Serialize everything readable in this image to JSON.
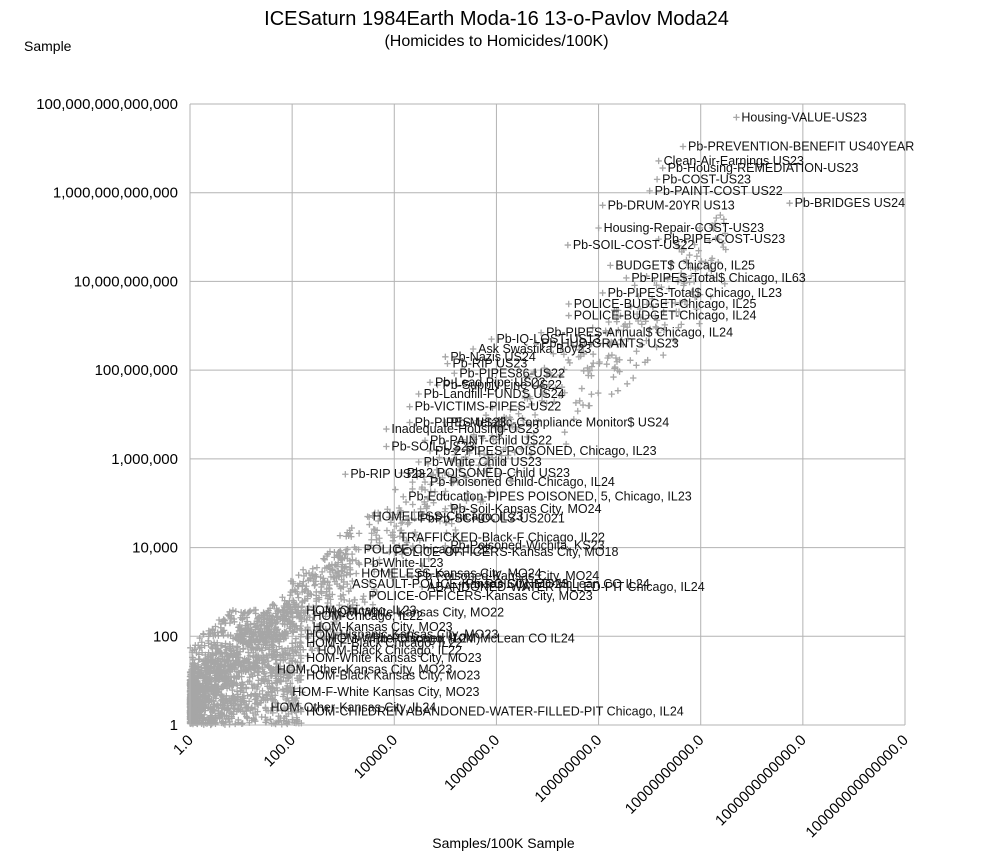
{
  "chart_data": {
    "type": "scatter",
    "title": "ICESaturn 1984Earth Moda-16 13-o-Pavlov Moda24",
    "subtitle": "(Homicides to Homicides/100K)",
    "xlabel": "Samples/100K Sample",
    "ylabel": "Sample",
    "x_scale": "log",
    "y_scale": "log",
    "xlim": [
      1,
      100000000000000
    ],
    "ylim": [
      1,
      100000000000000
    ],
    "grid": "vertical and horizontal gridlines at each decade tick",
    "marker": "plus",
    "marker_color": "#a6a6a6",
    "x_ticks": [
      1,
      100,
      10000,
      1000000,
      100000000,
      10000000000,
      1000000000000,
      100000000000000
    ],
    "x_tick_labels": [
      "1.0",
      "100.0",
      "10000.0",
      "1000000.0",
      "100000000.0",
      "10000000000.0",
      "1000000000000.0",
      "100000000000000.0"
    ],
    "y_ticks": [
      1,
      100,
      10000,
      1000000,
      100000000,
      10000000000,
      1000000000000,
      100000000000000
    ],
    "y_tick_labels": [
      "1",
      "100",
      "10,000",
      "1,000,000",
      "100,000,000",
      "10,000,000,000",
      "1,000,000,000,000",
      "100,000,000,000,000"
    ],
    "labeled_points": [
      {
        "label": "Housing-VALUE-US23",
        "x": 50000000000.0,
        "y": 50000000000000.0
      },
      {
        "label": "Pb-PREVENTION-BENEFIT US40YEAR",
        "x": 4500000000.0,
        "y": 11000000000000.0
      },
      {
        "label": "Clean-Air-Earnings US23",
        "x": 1500000000.0,
        "y": 5200000000000.0
      },
      {
        "label": "Pb-Housing-REMEDIATION-US23",
        "x": 1800000000.0,
        "y": 3600000000000.0
      },
      {
        "label": "Pb-COST-US23",
        "x": 1400000000.0,
        "y": 2000000000000.0
      },
      {
        "label": "Pb-PAINT-COST US22",
        "x": 1000000000.0,
        "y": 1100000000000.0
      },
      {
        "label": "Pb-BRIDGES US24",
        "x": 550000000000.0,
        "y": 580000000000.0
      },
      {
        "label": "Pb-DRUM-20YR US13",
        "x": 120000000.0,
        "y": 520000000000.0
      },
      {
        "label": "Housing-Repair-COST-US23",
        "x": 100000000.0,
        "y": 160000000000.0
      },
      {
        "label": "Pb-PIPE-COST-US23",
        "x": 1500000000.0,
        "y": 90000000000.0
      },
      {
        "label": "Pb-SOIL-COST-US22",
        "x": 25000000.0,
        "y": 66000000000.0
      },
      {
        "label": "BUDGET$ Chicago, IL25",
        "x": 170000000.0,
        "y": 23000000000.0
      },
      {
        "label": "Pb-PIPES-Total$ Chicago, IL63",
        "x": 350000000.0,
        "y": 12000000000.0
      },
      {
        "label": "Pb-PIPES-Total$ Chicago, IL23",
        "x": 120000000.0,
        "y": 5500000000.0
      },
      {
        "label": "POLICE-BUDGET-Chicago, IL25",
        "x": 26000000.0,
        "y": 3100000000.0
      },
      {
        "label": "POLICE-BUDGET-Chicago, IL24",
        "x": 26000000.0,
        "y": 1700000000.0
      },
      {
        "label": "Pb-PIPES-Annual$ Chicago, IL24",
        "x": 7500000.0,
        "y": 700000000.0
      },
      {
        "label": "Pb-IQ-LOST-US13",
        "x": 800000.0,
        "y": 500000000.0
      },
      {
        "label": "Pb-HUD-GRANTS US23",
        "x": 6000000.0,
        "y": 400000000.0
      },
      {
        "label": "Ask Swastika Boy23",
        "x": 350000.0,
        "y": 300000000.0
      },
      {
        "label": "Pb-Nazis US24",
        "x": 100000.0,
        "y": 200000000.0
      },
      {
        "label": "Pb-RIP US23",
        "x": 110000.0,
        "y": 140000000.0
      },
      {
        "label": "Pb-PIPES86-US22",
        "x": 150000.0,
        "y": 85000000.0
      },
      {
        "label": "Pb-Lead Pipe US22",
        "x": 50000.0,
        "y": 53000000.0
      },
      {
        "label": "Pb-Supply Line US22",
        "x": 70000.0,
        "y": 46000000.0
      },
      {
        "label": "Pb-Landfill-FUNDS US24",
        "x": 30000.0,
        "y": 29000000.0
      },
      {
        "label": "Pb-VICTIMS-PIPES-US22",
        "x": 20000.0,
        "y": 15000000.0
      },
      {
        "label": "Pb-PIPES-US23",
        "x": 20000.0,
        "y": 6600000.0
      },
      {
        "label": "Pb-Metallic-Compliance Monitor$ US24",
        "x": 100000.0,
        "y": 6600000.0
      },
      {
        "label": "Inadequate-Housing-US23",
        "x": 7000.0,
        "y": 4700000.0
      },
      {
        "label": "Pb-PAINT-Child US22",
        "x": 40000.0,
        "y": 2600000.0
      },
      {
        "label": "Pb-SOIL-US23",
        "x": 7000.0,
        "y": 1900000.0
      },
      {
        "label": "Pb-2-PIPES-POISONED, Chicago, IL23",
        "x": 50000.0,
        "y": 1500000.0
      },
      {
        "label": "Pb-White Child US23",
        "x": 30000.0,
        "y": 850000.0
      },
      {
        "label": "Pb-RIP US23",
        "x": 1100.0,
        "y": 450000.0
      },
      {
        "label": "Pb-2 POISONED-Child US23",
        "x": 14000.0,
        "y": 480000.0
      },
      {
        "label": "Pb-Poisoned Child-Chicago, IL24",
        "x": 40000.0,
        "y": 300000.0
      },
      {
        "label": "Pb-Education-PIPES POISONED, 5, Chicago, IL23",
        "x": 15000.0,
        "y": 140000.0
      },
      {
        "label": "Pb-Soil-Kansas City, MO24",
        "x": 100000.0,
        "y": 75000.0
      },
      {
        "label": "HOMELESS-Chicago, IL23",
        "x": 3000.0,
        "y": 50000.0
      },
      {
        "label": "PbPb-SCHOOLS-US2021",
        "x": 25000.0,
        "y": 45000.0
      },
      {
        "label": "TRAFFICKED-Black-F Chicago, IL22",
        "x": 10000.0,
        "y": 17000.0
      },
      {
        "label": "Pb-Poisoned-Wichita, KS23",
        "x": 100000.0,
        "y": 11000.0
      },
      {
        "label": "POLICE-Chicago, IL22",
        "x": 2000.0,
        "y": 9000.0
      },
      {
        "label": "POLICE-OFFICERS-Kansas City, MO18",
        "x": 8000.0,
        "y": 8000.0
      },
      {
        "label": "Pb-White-IL23",
        "x": 2000.0,
        "y": 4500.0
      },
      {
        "label": "HOMELESS-Kansas City, MO24",
        "x": 1800.0,
        "y": 2600.0
      },
      {
        "label": "Pb-Poisoned-Kansas City, MO24",
        "x": 22000.0,
        "y": 2300.0
      },
      {
        "label": "Pb-POISONED-McLean CO IL24",
        "x": 200000.0,
        "y": 1500.0
      },
      {
        "label": "ASSAULT-POLICE-Kansas City, MO23",
        "x": 1200.0,
        "y": 1500.0
      },
      {
        "label": "ABANDONED-WATER-FILLED-PIT Chicago, IL24",
        "x": 35000.0,
        "y": 1300.0
      },
      {
        "label": "POLICE-OFFICERS-Kansas City, MO23",
        "x": 2500.0,
        "y": 800.0
      },
      {
        "label": "HOM-Chicago, IL23",
        "x": 150.0,
        "y": 380.0
      },
      {
        "label": "HOM-White-Kansas City, MO22",
        "x": 400.0,
        "y": 340.0
      },
      {
        "label": "HOM-Chicago, IL22",
        "x": 200.0,
        "y": 290.0
      },
      {
        "label": "HOM-Kansas City, MO23",
        "x": 200.0,
        "y": 160.0
      },
      {
        "label": "HOM-Hispanic-Kansas City, MO23",
        "x": 150.0,
        "y": 110.0
      },
      {
        "label": "HOM-White Chicago, IL24",
        "x": 400.0,
        "y": 90.0
      },
      {
        "label": "Pb-Poisoned (10M)McLean CO IL24",
        "x": 3000.0,
        "y": 90.0
      },
      {
        "label": "HOM-F-Black Chicago, IL22",
        "x": 150.0,
        "y": 70.0
      },
      {
        "label": "HOM-Black Chicago, IL22",
        "x": 250.0,
        "y": 48.0
      },
      {
        "label": "HOM-White Kansas City, MO23",
        "x": 150.0,
        "y": 32.0
      },
      {
        "label": "HOM-Other-Kansas City, MO23",
        "x": 40.0,
        "y": 18.0
      },
      {
        "label": "HOM-Black Kansas City, MO23",
        "x": 150.0,
        "y": 13.0
      },
      {
        "label": "HOM-F-White Kansas City, MO23",
        "x": 80.0,
        "y": 5.5
      },
      {
        "label": "HOM-Other-Kansas City, IL24",
        "x": 30.0,
        "y": 2.5
      },
      {
        "label": "HOM-CHILDREN ABANDONED-WATER-FILLED-PIT Chicago, IL24",
        "x": 150.0,
        "y": 2.0
      }
    ]
  }
}
